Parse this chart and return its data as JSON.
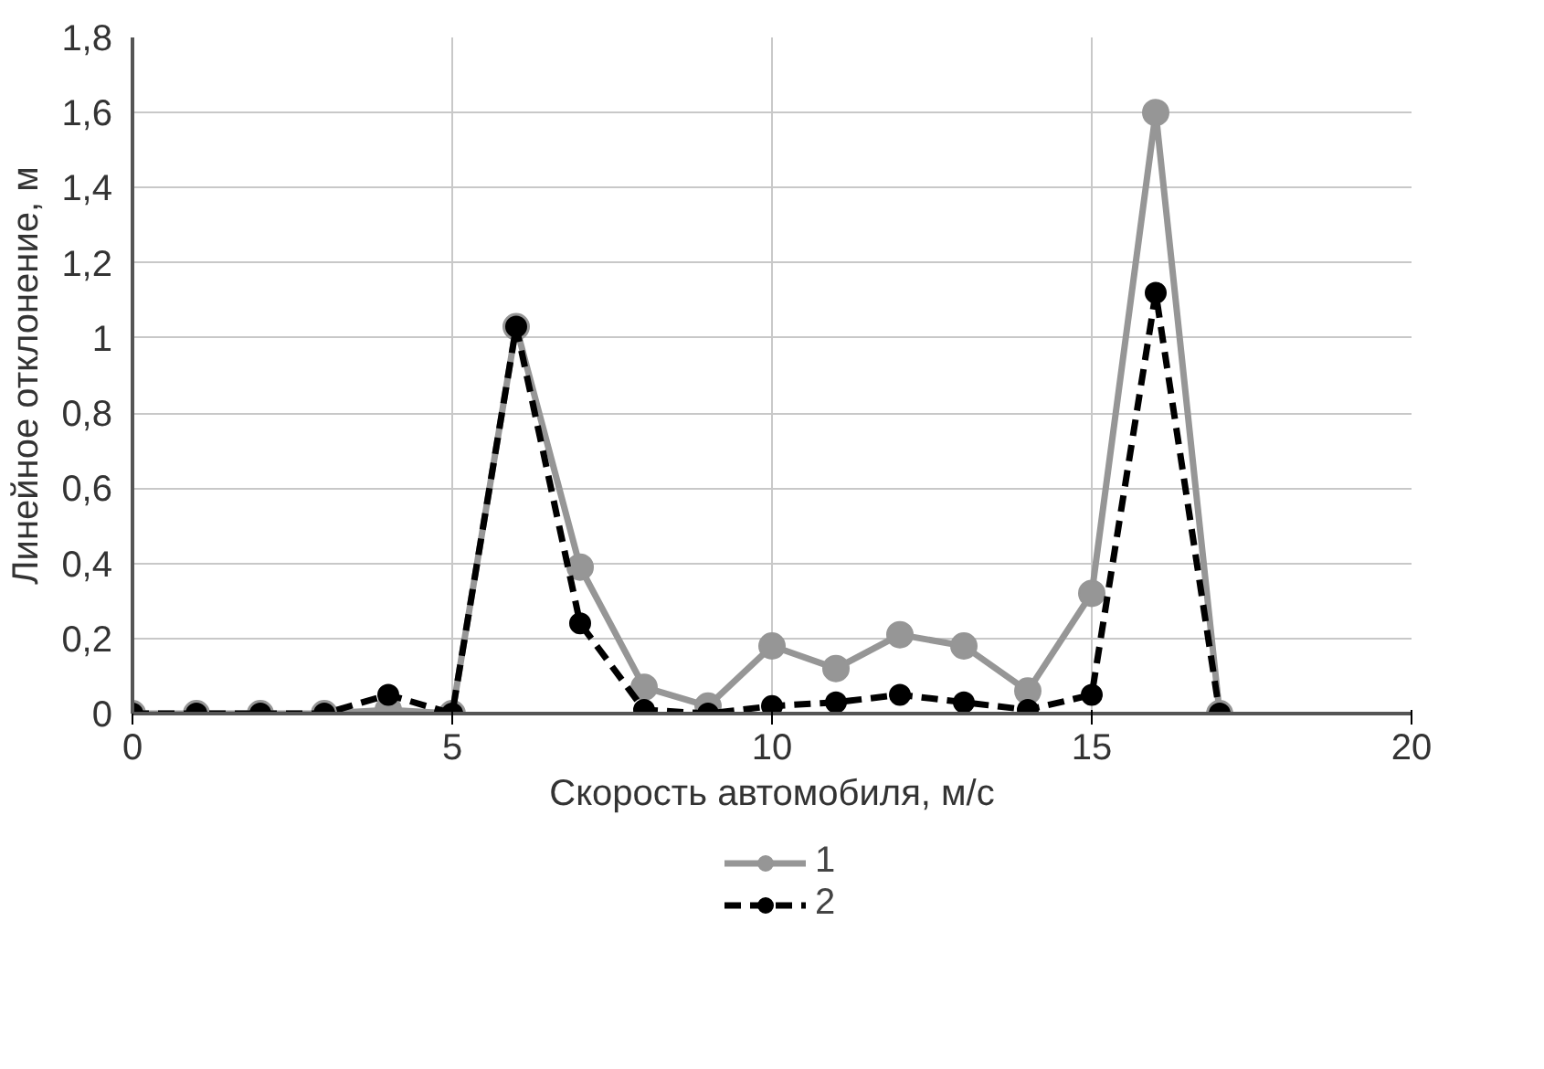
{
  "chart_data": {
    "type": "line",
    "xlabel": "Скорость автомобиля, м/с",
    "ylabel": "Линейное отклонение, м",
    "x": [
      0,
      1,
      2,
      3,
      4,
      5,
      6,
      7,
      8,
      9,
      10,
      11,
      12,
      13,
      14,
      15,
      16,
      17
    ],
    "series": [
      {
        "name": "1",
        "color": "#969696",
        "line_style": "solid",
        "values": [
          0,
          0,
          0,
          0,
          0.01,
          0,
          1.03,
          0.39,
          0.07,
          0.02,
          0.18,
          0.12,
          0.21,
          0.18,
          0.06,
          0.32,
          1.6,
          0
        ]
      },
      {
        "name": "2",
        "color": "#000000",
        "line_style": "dashed",
        "values": [
          0,
          0,
          0,
          0,
          0.05,
          0,
          1.03,
          0.24,
          0.01,
          0,
          0.02,
          0.03,
          0.05,
          0.03,
          0.01,
          0.05,
          1.12,
          0
        ]
      }
    ],
    "marker": "circle",
    "xlim": [
      0,
      20
    ],
    "xticks": [
      0,
      5,
      10,
      15,
      20
    ],
    "ylim": [
      0,
      1.8
    ],
    "yticks": [
      {
        "value": 0,
        "label": "0"
      },
      {
        "value": 0.2,
        "label": "0,2"
      },
      {
        "value": 0.4,
        "label": "0,4"
      },
      {
        "value": 0.6,
        "label": "0,6"
      },
      {
        "value": 0.8,
        "label": "0,8"
      },
      {
        "value": 1,
        "label": "1"
      },
      {
        "value": 1.2,
        "label": "1,2"
      },
      {
        "value": 1.4,
        "label": "1,4"
      },
      {
        "value": 1.6,
        "label": "1,6"
      },
      {
        "value": 1.8,
        "label": "1,8"
      }
    ],
    "grid": true,
    "legend": "bottom"
  }
}
